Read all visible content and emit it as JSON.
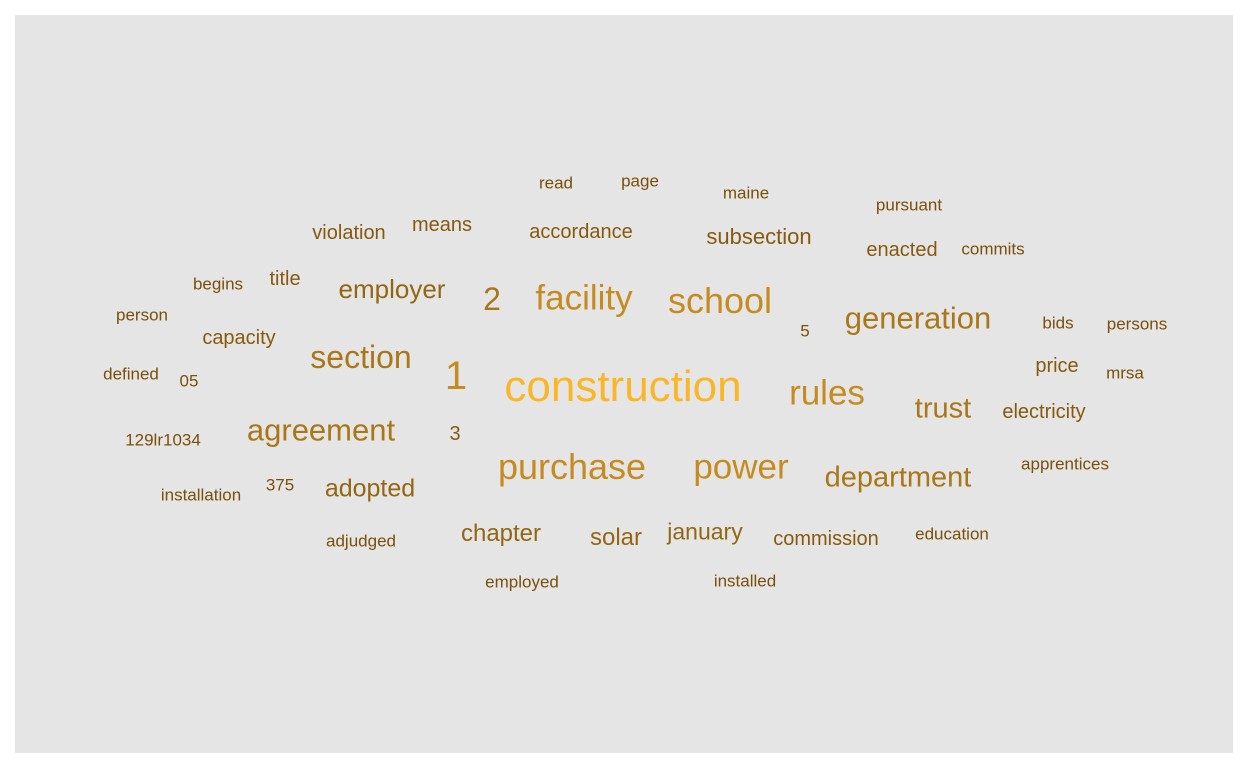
{
  "word_cloud": {
    "words": [
      {
        "text": "construction",
        "tier": 1
      },
      {
        "text": "1",
        "tier": 2
      },
      {
        "text": "purchase",
        "tier": 2
      },
      {
        "text": "school",
        "tier": 2
      },
      {
        "text": "facility",
        "tier": 2
      },
      {
        "text": "rules",
        "tier": 2
      },
      {
        "text": "power",
        "tier": 2
      },
      {
        "text": "section",
        "tier": 3
      },
      {
        "text": "generation",
        "tier": 3
      },
      {
        "text": "agreement",
        "tier": 3
      },
      {
        "text": "2",
        "tier": 3
      },
      {
        "text": "department",
        "tier": 3
      },
      {
        "text": "trust",
        "tier": 3
      },
      {
        "text": "employer",
        "tier": 4
      },
      {
        "text": "adopted",
        "tier": 4
      },
      {
        "text": "chapter",
        "tier": 4
      },
      {
        "text": "solar",
        "tier": 4
      },
      {
        "text": "january",
        "tier": 4
      },
      {
        "text": "subsection",
        "tier": 5
      },
      {
        "text": "capacity",
        "tier": 5
      },
      {
        "text": "commission",
        "tier": 5
      },
      {
        "text": "price",
        "tier": 5
      },
      {
        "text": "electricity",
        "tier": 5
      },
      {
        "text": "enacted",
        "tier": 5
      },
      {
        "text": "violation",
        "tier": 5
      },
      {
        "text": "means",
        "tier": 5
      },
      {
        "text": "accordance",
        "tier": 5
      },
      {
        "text": "title",
        "tier": 5
      },
      {
        "text": "3",
        "tier": 5
      },
      {
        "text": "apprentices",
        "tier": 6
      },
      {
        "text": "education",
        "tier": 6
      },
      {
        "text": "installed",
        "tier": 6
      },
      {
        "text": "employed",
        "tier": 6
      },
      {
        "text": "adjudged",
        "tier": 6
      },
      {
        "text": "installation",
        "tier": 6
      },
      {
        "text": "375",
        "tier": 6
      },
      {
        "text": "129lr1034",
        "tier": 6
      },
      {
        "text": "defined",
        "tier": 6
      },
      {
        "text": "05",
        "tier": 6
      },
      {
        "text": "person",
        "tier": 6
      },
      {
        "text": "begins",
        "tier": 6
      },
      {
        "text": "read",
        "tier": 6
      },
      {
        "text": "page",
        "tier": 6
      },
      {
        "text": "maine",
        "tier": 6
      },
      {
        "text": "pursuant",
        "tier": 6
      },
      {
        "text": "commits",
        "tier": 6
      },
      {
        "text": "bids",
        "tier": 6
      },
      {
        "text": "persons",
        "tier": 6
      },
      {
        "text": "mrsa",
        "tier": 6
      },
      {
        "text": "5",
        "tier": 6
      }
    ],
    "colors": {
      "tier1": "#fbb628",
      "tier2": "#c68b1f",
      "tier3": "#a97618",
      "tier4": "#936612",
      "tier5": "#86590d",
      "tier6": "#7a4f09"
    }
  }
}
